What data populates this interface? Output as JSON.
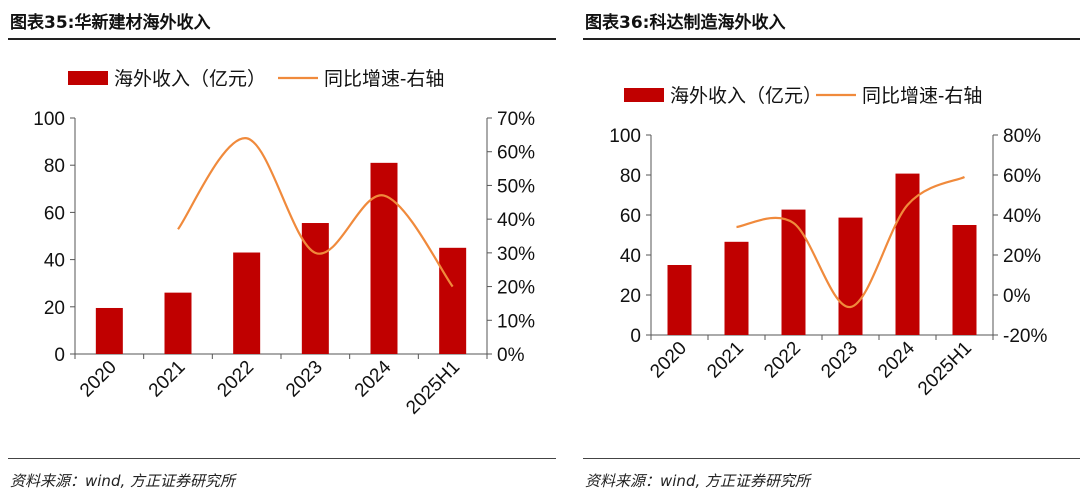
{
  "chart_data": [
    {
      "type": "bar+line",
      "title": "图表35:华新建材海外收入",
      "categories": [
        "2020",
        "2021",
        "2022",
        "2023",
        "2024",
        "2025H1"
      ],
      "series": [
        {
          "name": "海外收入（亿元）",
          "type": "bar",
          "axis": "left",
          "color": "#c00000",
          "values": [
            19.5,
            26,
            43,
            55.5,
            81,
            45
          ]
        },
        {
          "name": "同比增速-右轴",
          "type": "line",
          "axis": "right",
          "color": "#f08a3c",
          "values": [
            null,
            37,
            64,
            30,
            47,
            20
          ]
        }
      ],
      "ylim": [
        0,
        100
      ],
      "yticks": [
        "0",
        "20",
        "40",
        "60",
        "80",
        "100"
      ],
      "y2lim": [
        0,
        70
      ],
      "y2ticks": [
        "0%",
        "10%",
        "20%",
        "30%",
        "40%",
        "50%",
        "60%",
        "70%"
      ],
      "legend": "top",
      "source": "资料来源：wind, 方正证券研究所"
    },
    {
      "type": "bar+line",
      "title": "图表36:科达制造海外收入",
      "categories": [
        "2020",
        "2021",
        "2022",
        "2023",
        "2024",
        "2025H1"
      ],
      "series": [
        {
          "name": "海外收入（亿元）",
          "type": "bar",
          "axis": "left",
          "color": "#c00000",
          "values": [
            35,
            46.6,
            62.7,
            58.7,
            80.7,
            55
          ]
        },
        {
          "name": "同比增速-右轴",
          "type": "line",
          "axis": "right",
          "color": "#f08a3c",
          "values": [
            null,
            34,
            36,
            -6,
            45,
            59
          ]
        }
      ],
      "ylim": [
        0,
        100
      ],
      "yticks": [
        "0",
        "20",
        "40",
        "60",
        "80",
        "100"
      ],
      "y2lim": [
        -20,
        80
      ],
      "y2ticks": [
        "-20%",
        "0%",
        "20%",
        "40%",
        "60%",
        "80%"
      ],
      "legend": "top",
      "source": "资料来源：wind, 方正证券研究所"
    }
  ]
}
